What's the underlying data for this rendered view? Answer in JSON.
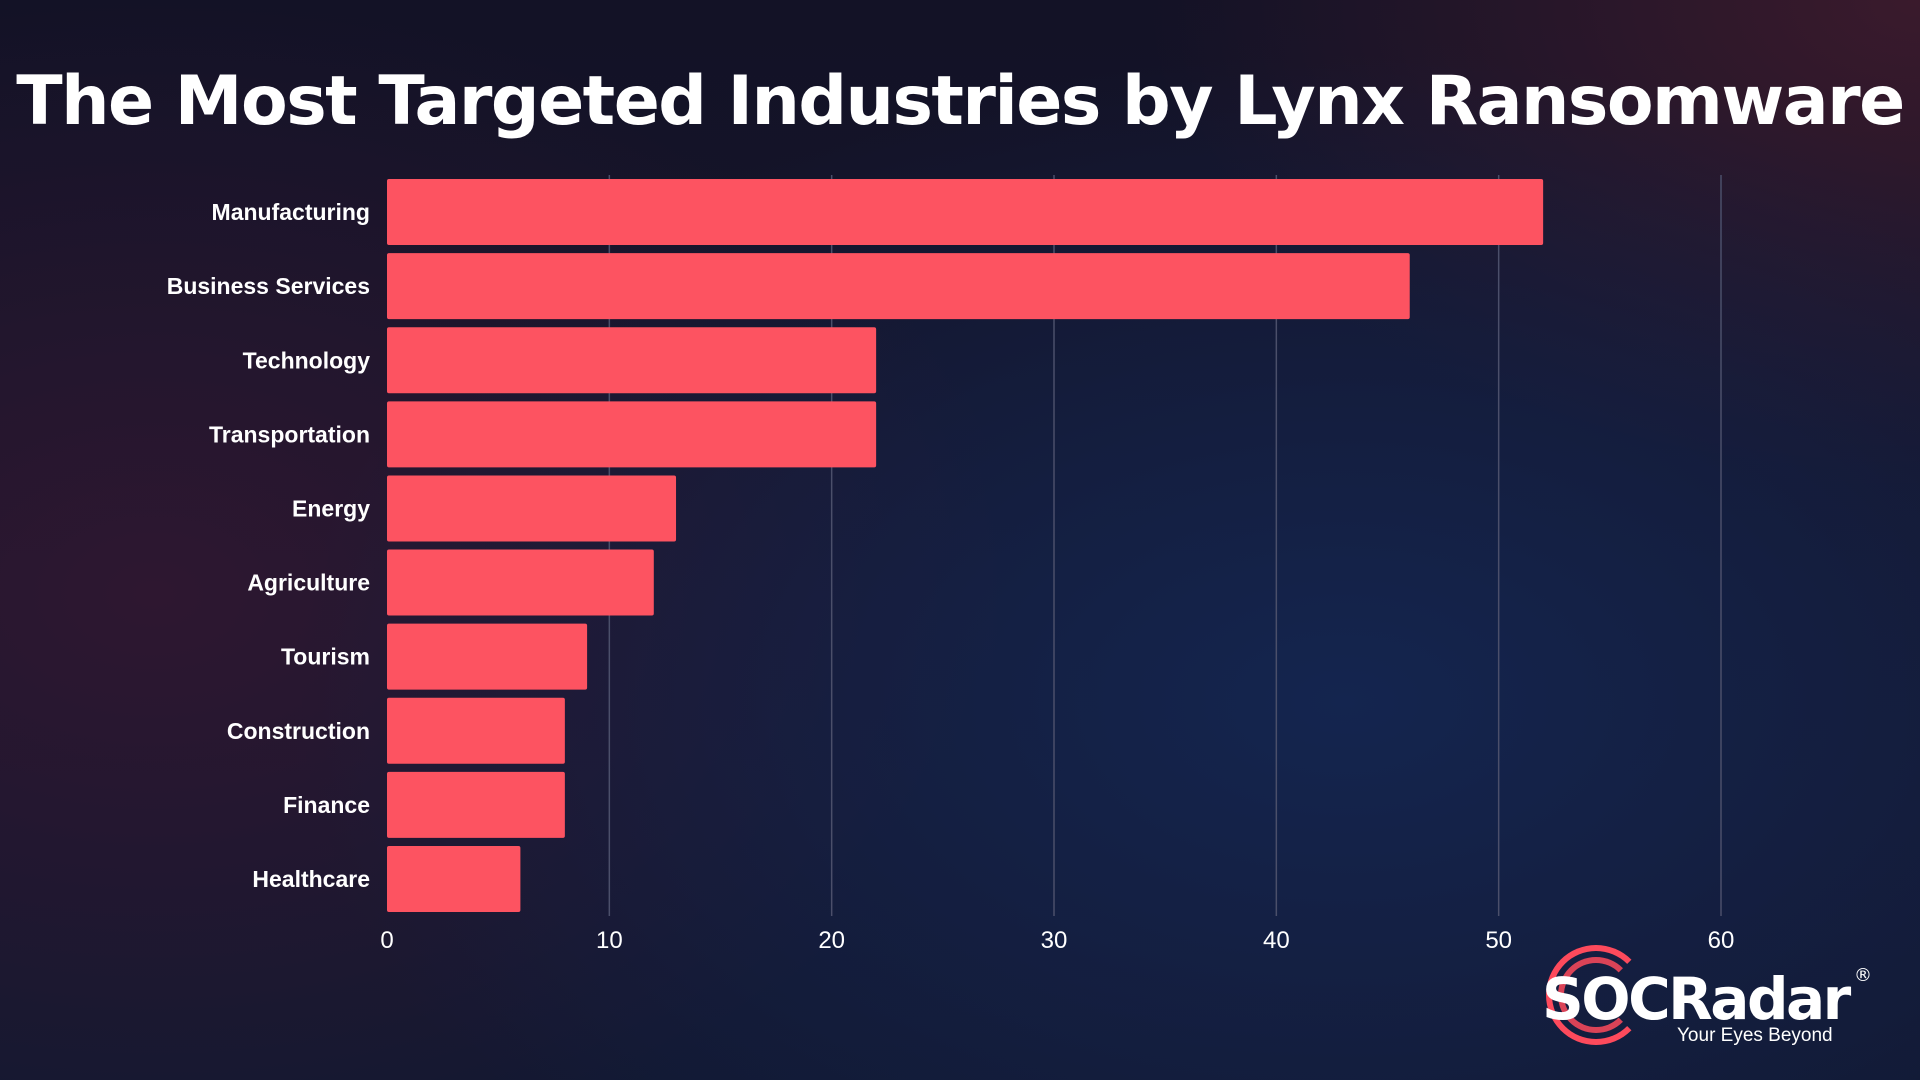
{
  "title": "The Most Targeted Industries by Lynx Ransomware",
  "colors": {
    "bar": "#fd5361",
    "grid": "#4b4f6a",
    "text": "#ffffff",
    "logo_accent": "#fd4a5c"
  },
  "chart_data": {
    "type": "bar",
    "orientation": "horizontal",
    "title": "The Most Targeted Industries by Lynx Ransomware",
    "categories": [
      "Manufacturing",
      "Business Services",
      "Technology",
      "Transportation",
      "Energy",
      "Agriculture",
      "Tourism",
      "Construction",
      "Finance",
      "Healthcare"
    ],
    "values": [
      52,
      46,
      22,
      22,
      13,
      12,
      9,
      8,
      8,
      6
    ],
    "xlim": [
      0,
      60
    ],
    "xticks": [
      0,
      10,
      20,
      30,
      40,
      50,
      60
    ],
    "grid": "vertical",
    "legend": "none"
  },
  "logo": {
    "name": "SOCRadar",
    "registered": "®",
    "tagline": "Your Eyes Beyond",
    "icon": "radar-rings-icon"
  }
}
